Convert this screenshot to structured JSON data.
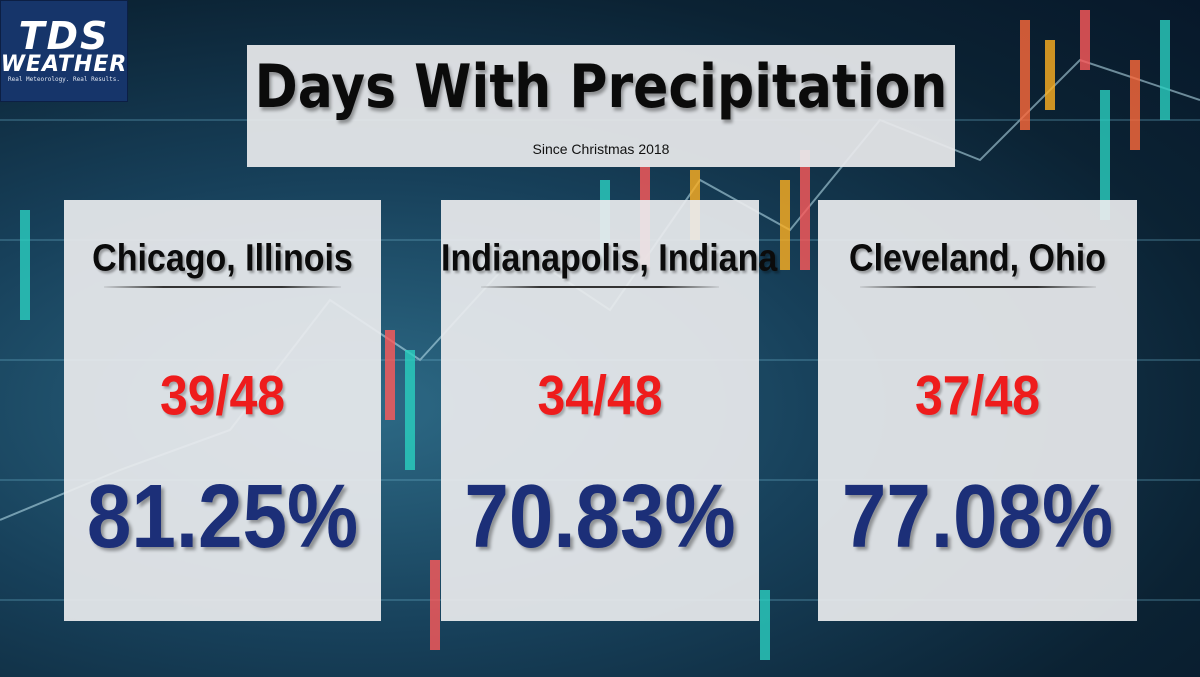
{
  "logo": {
    "line1": "TDS",
    "line2": "WEATHER",
    "tagline": "Real Meteorology. Real Results."
  },
  "header": {
    "title": "Days With Precipitation",
    "subtitle": "Since Christmas 2018"
  },
  "cards": [
    {
      "city": "Chicago, Illinois",
      "ratio": "39/48",
      "percent": "81.25%"
    },
    {
      "city": "Indianapolis, Indiana",
      "ratio": "34/48",
      "percent": "70.83%"
    },
    {
      "city": "Cleveland, Ohio",
      "ratio": "37/48",
      "percent": "77.08%"
    }
  ],
  "colors": {
    "ratio": "#ee1c1c",
    "percent": "#1c2f78",
    "logo_bg": "#16356a"
  }
}
